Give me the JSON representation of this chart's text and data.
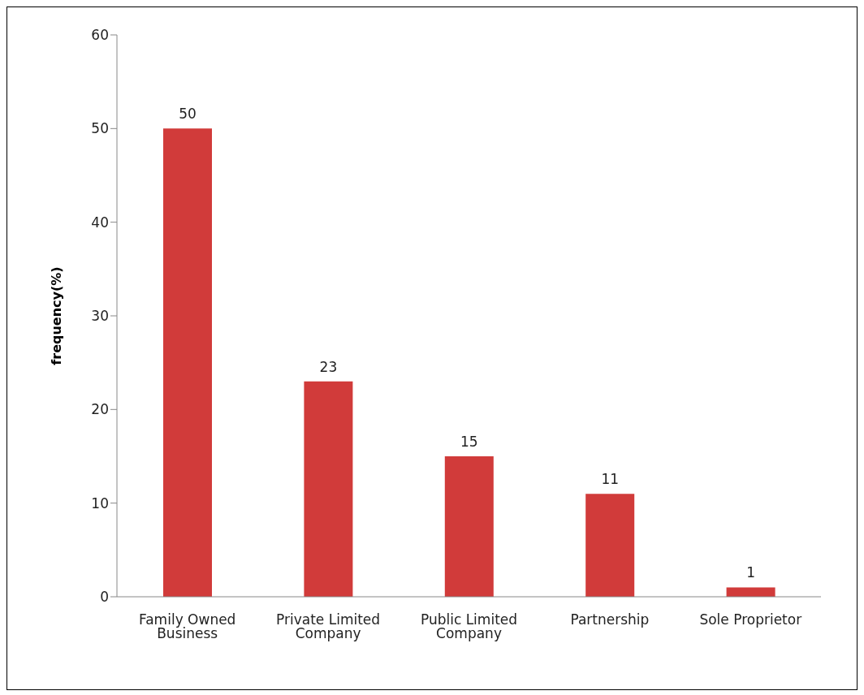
{
  "chart_data": {
    "type": "bar",
    "ylabel": "frequency(%)",
    "categories": [
      "Family Owned Business",
      "Private Limited Company",
      "Public Limited Company",
      "Partnership",
      "Sole Proprietor"
    ],
    "values": [
      50,
      23,
      15,
      11,
      1
    ],
    "color": "#d13b3a",
    "ylim": [
      0,
      60
    ],
    "yticks": [
      0,
      10,
      20,
      30,
      40,
      50,
      60
    ],
    "grid": false,
    "data_labels": true
  }
}
